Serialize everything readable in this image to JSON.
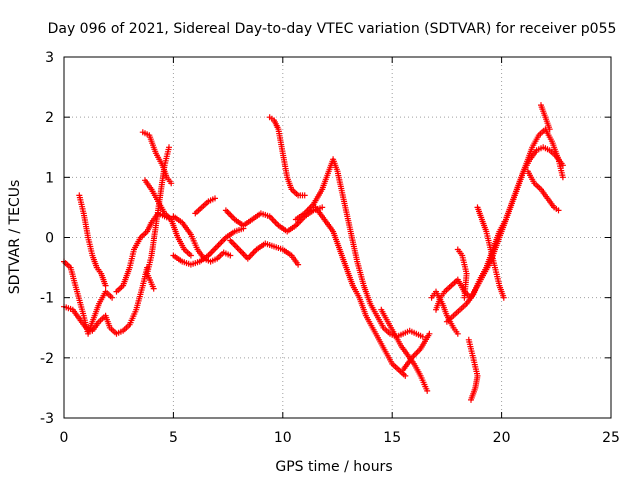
{
  "chart_data": {
    "type": "scatter",
    "title": "Day 096 of 2021, Sidereal Day-to-day VTEC variation (SDTVAR) for receiver p055",
    "xlabel": "GPS time / hours",
    "ylabel": "SDTVAR / TECUs",
    "xlim": [
      0,
      25
    ],
    "ylim": [
      -3,
      3
    ],
    "x_ticks": [
      0,
      5,
      10,
      15,
      20,
      25
    ],
    "y_ticks": [
      -3,
      -2,
      -1,
      0,
      1,
      2,
      3
    ],
    "x_tick_labels": [
      "0",
      "5",
      "10",
      "15",
      "20",
      "25"
    ],
    "y_tick_labels": [
      "-3",
      "-2",
      "-1",
      "0",
      "1",
      "2",
      "3"
    ],
    "grid": true,
    "marker": "+",
    "series": [
      {
        "name": "p055",
        "color": "#ff0000",
        "tracks": [
          [
            [
              0.0,
              -0.4
            ],
            [
              0.3,
              -0.5
            ],
            [
              0.6,
              -0.9
            ],
            [
              0.9,
              -1.3
            ],
            [
              1.1,
              -1.6
            ],
            [
              1.3,
              -1.4
            ],
            [
              1.6,
              -1.1
            ],
            [
              1.9,
              -0.9
            ],
            [
              2.2,
              -1.0
            ]
          ],
          [
            [
              0.0,
              -1.15
            ],
            [
              0.4,
              -1.2
            ],
            [
              0.7,
              -1.35
            ],
            [
              1.0,
              -1.5
            ],
            [
              1.3,
              -1.55
            ],
            [
              1.6,
              -1.4
            ],
            [
              1.9,
              -1.3
            ],
            [
              2.1,
              -1.5
            ],
            [
              2.4,
              -1.6
            ],
            [
              2.7,
              -1.55
            ],
            [
              3.0,
              -1.45
            ],
            [
              3.3,
              -1.2
            ],
            [
              3.6,
              -0.8
            ],
            [
              3.8,
              -0.5
            ]
          ],
          [
            [
              0.7,
              0.7
            ],
            [
              0.9,
              0.4
            ],
            [
              1.1,
              0.0
            ],
            [
              1.3,
              -0.3
            ],
            [
              1.5,
              -0.5
            ],
            [
              1.7,
              -0.6
            ],
            [
              1.9,
              -0.8
            ]
          ],
          [
            [
              2.4,
              -0.9
            ],
            [
              2.7,
              -0.8
            ],
            [
              3.0,
              -0.5
            ],
            [
              3.2,
              -0.2
            ],
            [
              3.5,
              0.0
            ],
            [
              3.8,
              0.1
            ],
            [
              4.0,
              0.25
            ],
            [
              4.3,
              0.4
            ],
            [
              4.6,
              0.35
            ],
            [
              4.9,
              0.3
            ]
          ],
          [
            [
              3.6,
              1.75
            ],
            [
              3.9,
              1.7
            ],
            [
              4.2,
              1.4
            ],
            [
              4.5,
              1.2
            ],
            [
              4.7,
              1.0
            ],
            [
              4.9,
              0.9
            ]
          ],
          [
            [
              3.7,
              0.95
            ],
            [
              4.0,
              0.8
            ],
            [
              4.3,
              0.6
            ],
            [
              4.6,
              0.4
            ],
            [
              4.9,
              0.3
            ],
            [
              5.2,
              0.0
            ],
            [
              5.5,
              -0.2
            ],
            [
              5.8,
              -0.3
            ]
          ],
          [
            [
              4.8,
              1.5
            ],
            [
              4.6,
              1.2
            ],
            [
              4.4,
              0.7
            ],
            [
              4.2,
              0.2
            ],
            [
              4.0,
              -0.3
            ],
            [
              3.8,
              -0.6
            ],
            [
              4.1,
              -0.85
            ]
          ],
          [
            [
              5.0,
              0.35
            ],
            [
              5.4,
              0.25
            ],
            [
              5.8,
              0.05
            ],
            [
              6.1,
              -0.2
            ],
            [
              6.4,
              -0.35
            ],
            [
              6.7,
              -0.4
            ],
            [
              7.0,
              -0.35
            ],
            [
              7.3,
              -0.25
            ],
            [
              7.6,
              -0.3
            ]
          ],
          [
            [
              5.0,
              -0.3
            ],
            [
              5.4,
              -0.4
            ],
            [
              5.8,
              -0.45
            ],
            [
              6.2,
              -0.4
            ],
            [
              6.6,
              -0.3
            ],
            [
              7.0,
              -0.15
            ],
            [
              7.4,
              0.0
            ],
            [
              7.8,
              0.1
            ],
            [
              8.2,
              0.15
            ]
          ],
          [
            [
              6.0,
              0.4
            ],
            [
              6.3,
              0.5
            ],
            [
              6.6,
              0.6
            ],
            [
              6.9,
              0.65
            ]
          ],
          [
            [
              7.4,
              0.45
            ],
            [
              7.8,
              0.3
            ],
            [
              8.2,
              0.2
            ],
            [
              8.6,
              0.3
            ],
            [
              9.0,
              0.4
            ],
            [
              9.4,
              0.35
            ],
            [
              9.8,
              0.2
            ],
            [
              10.2,
              0.1
            ],
            [
              10.6,
              0.2
            ],
            [
              11.0,
              0.35
            ],
            [
              11.4,
              0.45
            ],
            [
              11.8,
              0.5
            ]
          ],
          [
            [
              7.6,
              -0.05
            ],
            [
              8.0,
              -0.2
            ],
            [
              8.4,
              -0.35
            ],
            [
              8.8,
              -0.2
            ],
            [
              9.2,
              -0.1
            ],
            [
              9.6,
              -0.15
            ],
            [
              10.0,
              -0.2
            ],
            [
              10.4,
              -0.3
            ],
            [
              10.7,
              -0.45
            ]
          ],
          [
            [
              9.4,
              2.0
            ],
            [
              9.6,
              1.95
            ],
            [
              9.8,
              1.8
            ],
            [
              10.0,
              1.4
            ],
            [
              10.2,
              1.0
            ],
            [
              10.4,
              0.8
            ],
            [
              10.7,
              0.7
            ],
            [
              11.0,
              0.7
            ]
          ],
          [
            [
              10.6,
              0.3
            ],
            [
              11.0,
              0.4
            ],
            [
              11.4,
              0.55
            ],
            [
              11.8,
              0.8
            ],
            [
              12.1,
              1.1
            ],
            [
              12.3,
              1.3
            ],
            [
              12.5,
              1.1
            ],
            [
              12.8,
              0.6
            ],
            [
              13.1,
              0.1
            ],
            [
              13.4,
              -0.4
            ],
            [
              13.7,
              -0.8
            ],
            [
              14.0,
              -1.1
            ],
            [
              14.3,
              -1.3
            ],
            [
              14.6,
              -1.5
            ],
            [
              14.9,
              -1.6
            ],
            [
              15.2,
              -1.65
            ],
            [
              15.5,
              -1.6
            ],
            [
              15.8,
              -1.55
            ],
            [
              16.1,
              -1.6
            ],
            [
              16.4,
              -1.65
            ]
          ],
          [
            [
              11.5,
              0.5
            ],
            [
              11.9,
              0.3
            ],
            [
              12.3,
              0.1
            ],
            [
              12.6,
              -0.2
            ],
            [
              12.9,
              -0.5
            ],
            [
              13.2,
              -0.8
            ],
            [
              13.5,
              -1.0
            ],
            [
              13.8,
              -1.3
            ],
            [
              14.1,
              -1.5
            ],
            [
              14.4,
              -1.7
            ],
            [
              14.7,
              -1.9
            ],
            [
              15.0,
              -2.1
            ],
            [
              15.3,
              -2.2
            ],
            [
              15.6,
              -2.3
            ]
          ],
          [
            [
              14.5,
              -1.2
            ],
            [
              14.8,
              -1.4
            ],
            [
              15.1,
              -1.6
            ],
            [
              15.4,
              -1.8
            ],
            [
              15.7,
              -1.95
            ],
            [
              16.0,
              -2.1
            ],
            [
              16.3,
              -2.3
            ],
            [
              16.6,
              -2.55
            ]
          ],
          [
            [
              15.5,
              -2.2
            ],
            [
              15.9,
              -2.0
            ],
            [
              16.3,
              -1.85
            ],
            [
              16.7,
              -1.6
            ]
          ],
          [
            [
              17.0,
              -1.2
            ],
            [
              17.2,
              -1.0
            ],
            [
              17.4,
              -0.9
            ],
            [
              17.7,
              -0.8
            ],
            [
              18.0,
              -0.7
            ],
            [
              18.3,
              -0.9
            ],
            [
              18.6,
              -1.0
            ],
            [
              18.9,
              -0.8
            ],
            [
              19.2,
              -0.6
            ],
            [
              19.5,
              -0.4
            ],
            [
              19.8,
              -0.1
            ],
            [
              20.1,
              0.2
            ],
            [
              20.4,
              0.5
            ],
            [
              20.7,
              0.8
            ],
            [
              21.0,
              1.1
            ],
            [
              21.3,
              1.3
            ],
            [
              21.6,
              1.45
            ],
            [
              21.9,
              1.5
            ],
            [
              22.2,
              1.45
            ],
            [
              22.5,
              1.35
            ],
            [
              22.8,
              1.2
            ]
          ],
          [
            [
              18.6,
              -2.7
            ],
            [
              18.8,
              -2.5
            ],
            [
              18.9,
              -2.3
            ],
            [
              18.7,
              -2.0
            ],
            [
              18.5,
              -1.7
            ]
          ],
          [
            [
              17.5,
              -1.4
            ],
            [
              17.8,
              -1.3
            ],
            [
              18.1,
              -1.2
            ],
            [
              18.4,
              -1.1
            ],
            [
              18.7,
              -0.95
            ],
            [
              19.0,
              -0.7
            ],
            [
              19.3,
              -0.5
            ],
            [
              19.6,
              -0.2
            ],
            [
              19.9,
              0.1
            ],
            [
              20.2,
              0.3
            ],
            [
              20.5,
              0.6
            ],
            [
              20.8,
              0.9
            ],
            [
              21.1,
              1.2
            ],
            [
              21.4,
              1.5
            ],
            [
              21.7,
              1.7
            ],
            [
              22.0,
              1.8
            ],
            [
              22.3,
              1.6
            ],
            [
              22.6,
              1.3
            ],
            [
              22.8,
              1.0
            ]
          ],
          [
            [
              18.9,
              0.5
            ],
            [
              19.1,
              0.3
            ],
            [
              19.3,
              0.1
            ],
            [
              19.5,
              -0.2
            ],
            [
              19.7,
              -0.5
            ],
            [
              19.9,
              -0.8
            ],
            [
              20.1,
              -1.0
            ]
          ],
          [
            [
              21.2,
              1.1
            ],
            [
              21.5,
              0.9
            ],
            [
              21.8,
              0.8
            ],
            [
              22.1,
              0.65
            ],
            [
              22.4,
              0.5
            ],
            [
              22.6,
              0.45
            ]
          ],
          [
            [
              21.8,
              2.2
            ],
            [
              22.0,
              2.0
            ],
            [
              22.2,
              1.8
            ]
          ],
          [
            [
              16.8,
              -1.0
            ],
            [
              17.0,
              -0.9
            ],
            [
              17.3,
              -1.1
            ],
            [
              17.5,
              -1.3
            ],
            [
              17.8,
              -1.5
            ],
            [
              18.0,
              -1.6
            ]
          ],
          [
            [
              18.0,
              -0.2
            ],
            [
              18.2,
              -0.3
            ],
            [
              18.4,
              -0.6
            ],
            [
              18.3,
              -1.0
            ]
          ]
        ]
      }
    ]
  }
}
